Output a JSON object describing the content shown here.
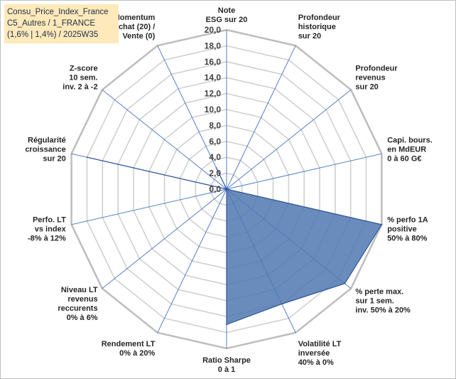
{
  "header": {
    "line1": "Consu_Price_Index_France",
    "line2": "C5_Autres / 1_FRANCE",
    "line3": "(1,6% | 1,4%) / 2025W35"
  },
  "chart_data": {
    "type": "radar",
    "title": "",
    "rmin": 0,
    "rmax": 20,
    "tick_step": 2,
    "tick_labels": [
      "0,0",
      "2,0",
      "4,0",
      "6,0",
      "8,0",
      "10,0",
      "12,0",
      "14,0",
      "16,0",
      "18,0",
      "20,0"
    ],
    "axes": [
      [
        "Note",
        "ESG sur 20"
      ],
      [
        "Profondeur",
        "historique",
        "sur 20"
      ],
      [
        "Profondeur",
        "revenus",
        "sur 20"
      ],
      [
        "Capi. bours.",
        "en MdEUR",
        "0 à 60 G€"
      ],
      [
        "% perfo 1A",
        "positive",
        "50% à 80%"
      ],
      [
        "% perte max.",
        "sur 1 sem.",
        "inv. 50% à 20%"
      ],
      [
        "Volatilité LT",
        "inversée",
        "40% à 0%"
      ],
      [
        "Ratio Sharpe",
        "0 à 1"
      ],
      [
        "Rendement LT",
        "0% à 20%"
      ],
      [
        "Niveau LT",
        "revenus",
        "reccurents",
        "0% à 6%"
      ],
      [
        "Perfo. LT",
        "vs index",
        "-8% à 12%"
      ],
      [
        "Régularité",
        "croissance",
        "sur 20"
      ],
      [
        "Z-score",
        "10 sem.",
        "inv. 2 à -2"
      ],
      [
        "Momentum",
        "Achat (20) /",
        "Vente (0)"
      ]
    ],
    "values": [
      0,
      0,
      0,
      0,
      20,
      19,
      16,
      17,
      0,
      0,
      0,
      18,
      0,
      3
    ],
    "colors": {
      "fill": "#4f78b0",
      "stroke": "#2f5597",
      "grid": "#d0d0d0",
      "spoke": "#4472c4"
    }
  }
}
